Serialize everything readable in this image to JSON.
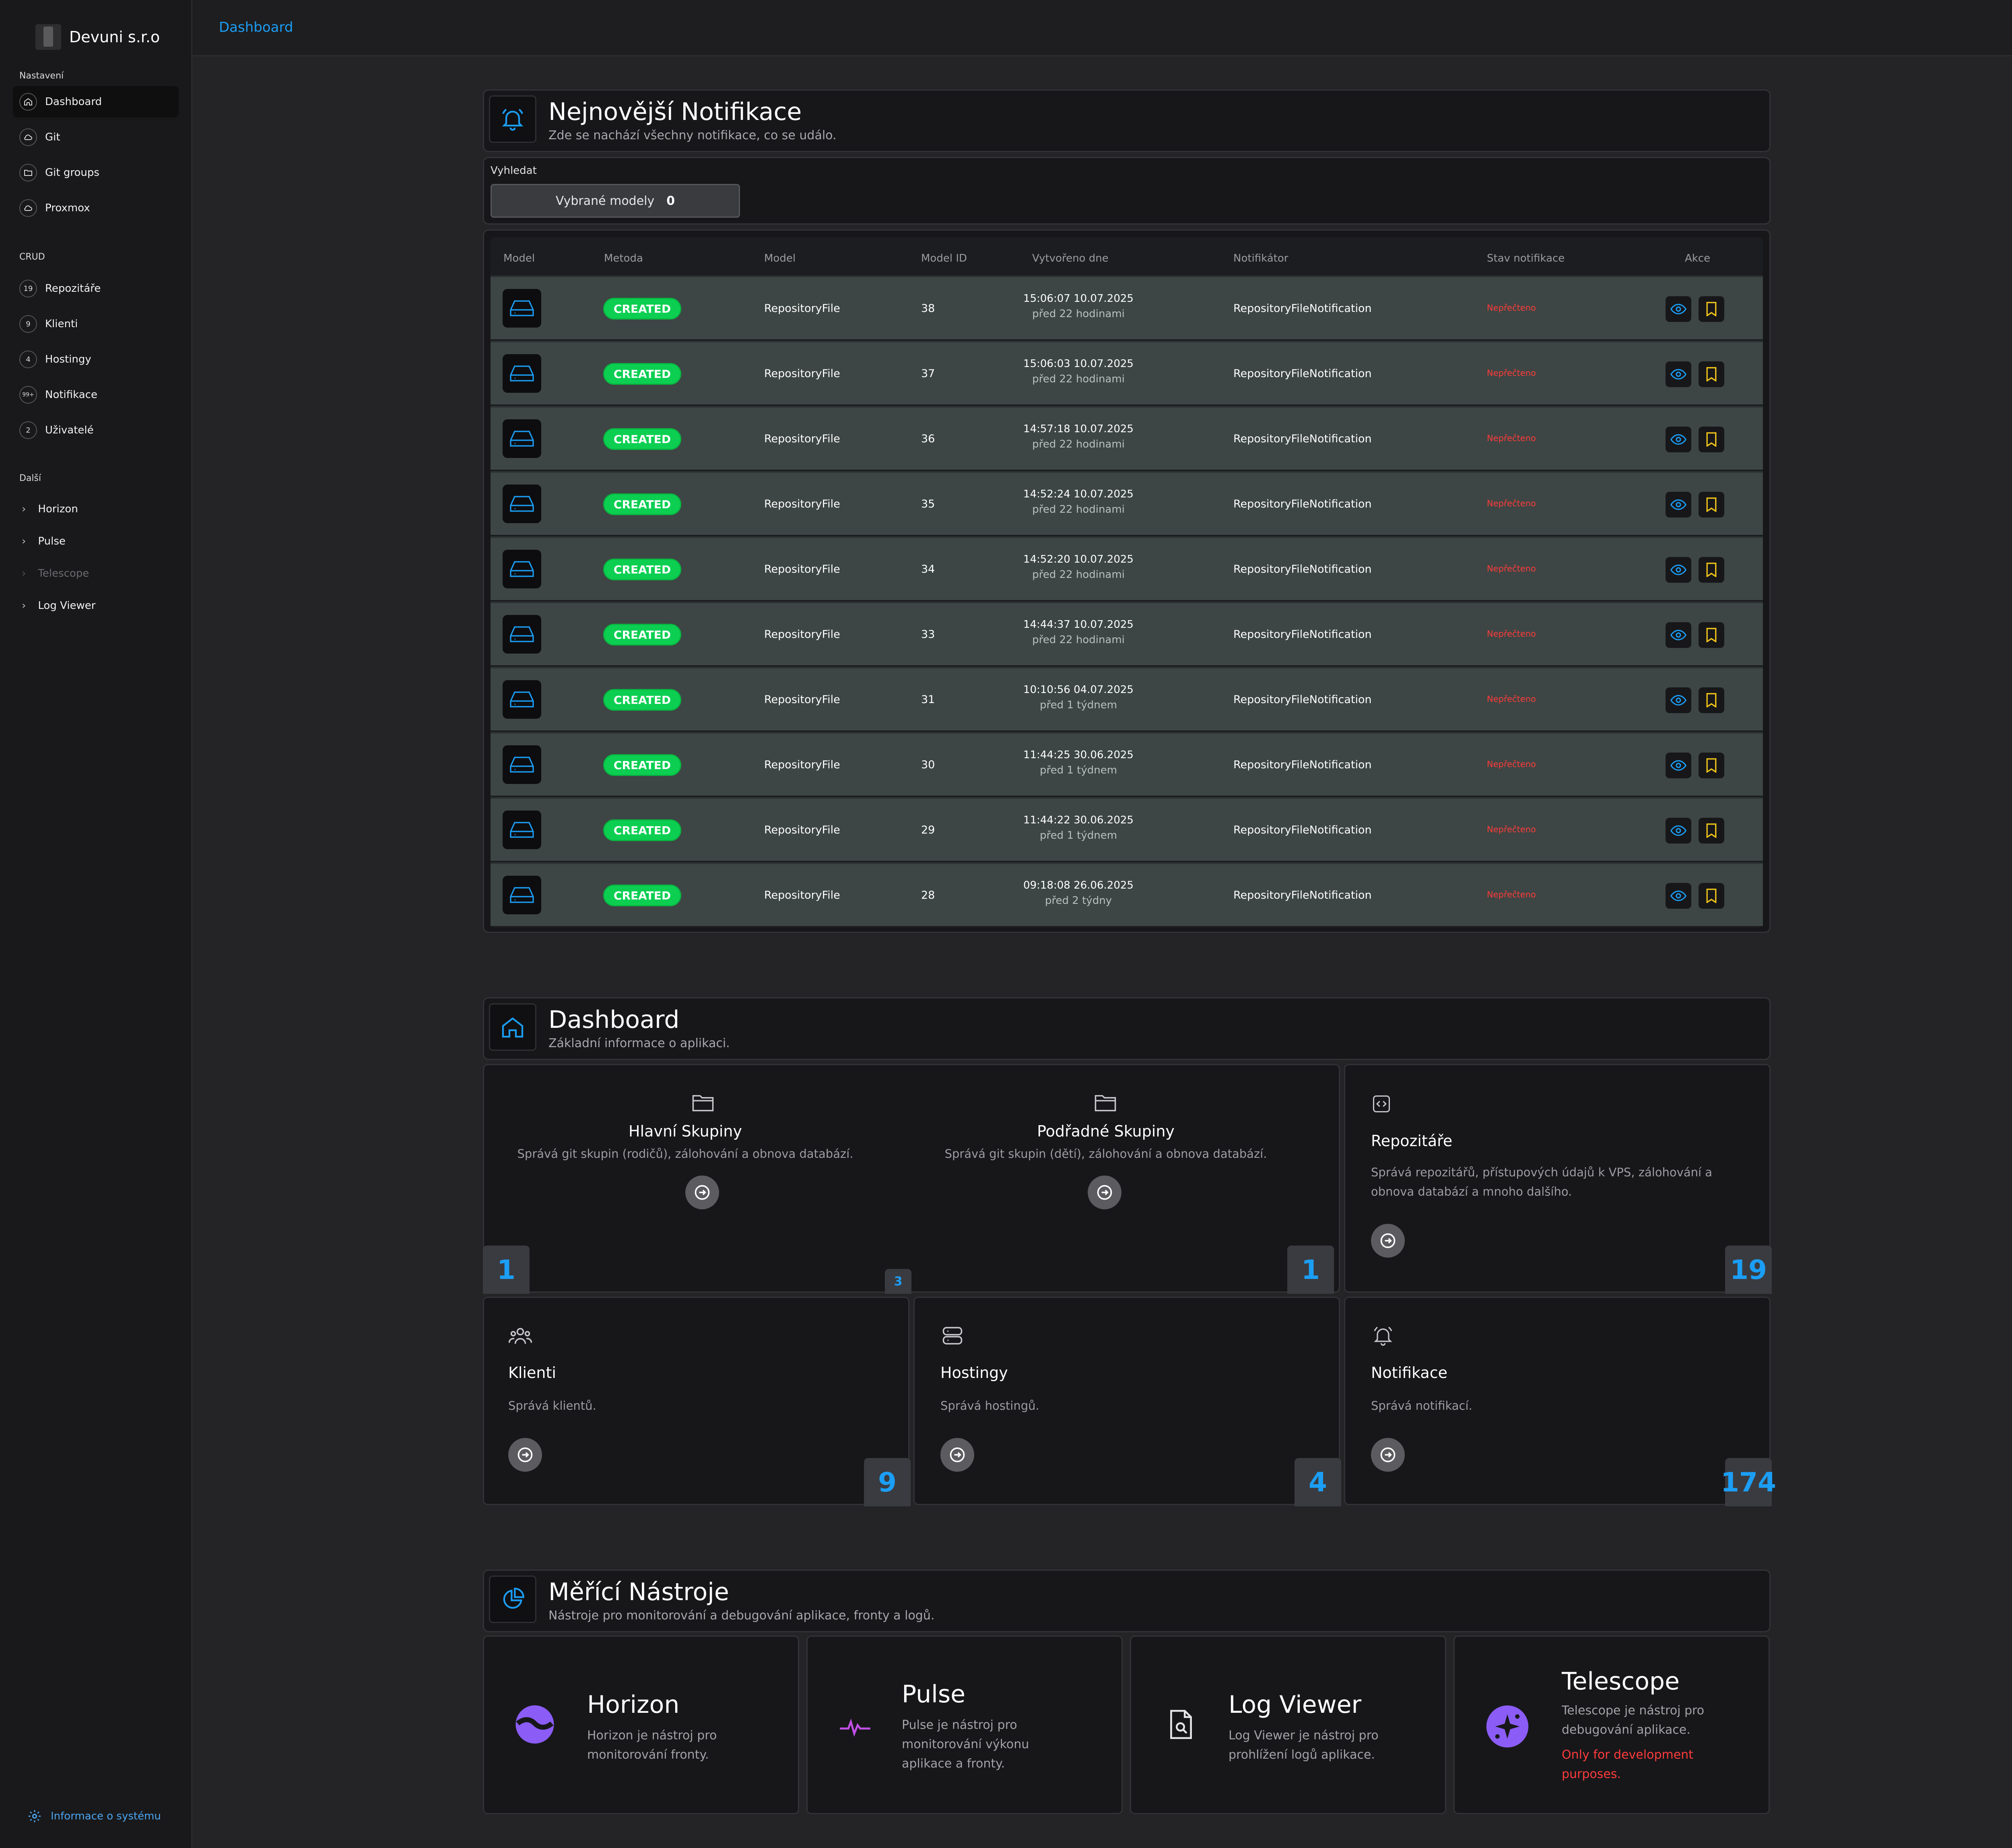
{
  "brand": {
    "name": "Devuni s.r.o"
  },
  "sidebar": {
    "sections": [
      {
        "label": "Nastavení",
        "items": [
          {
            "label": "Dashboard",
            "icon": "home-icon",
            "active": true
          },
          {
            "label": "Git",
            "icon": "cloud-icon"
          },
          {
            "label": "Git groups",
            "icon": "folder-icon"
          },
          {
            "label": "Proxmox",
            "icon": "cloud-icon"
          }
        ]
      },
      {
        "label": "CRUD",
        "items": [
          {
            "label": "Repozitáře",
            "count": "19"
          },
          {
            "label": "Klienti",
            "count": "9"
          },
          {
            "label": "Hostingy",
            "count": "4"
          },
          {
            "label": "Notifikace",
            "count": "99+"
          },
          {
            "label": "Uživatelé",
            "count": "2"
          }
        ]
      },
      {
        "label": "Další",
        "items": [
          {
            "label": "Horizon"
          },
          {
            "label": "Pulse"
          },
          {
            "label": "Telescope",
            "disabled": true
          },
          {
            "label": "Log Viewer"
          }
        ]
      }
    ],
    "footer": "Informace o systému"
  },
  "header": {
    "breadcrumb": "Dashboard"
  },
  "notifications": {
    "title": "Nejnovější Notifikace",
    "subtitle": "Zde se nachází všechny notifikace, co se událo.",
    "search_label": "Vyhledat",
    "selected_label": "Vybrané modely",
    "selected_count": "0",
    "columns": [
      "Model",
      "Metoda",
      "Model",
      "Model ID",
      "Vytvořeno dne",
      "Notifikátor",
      "Stav notifikace",
      "Akce"
    ],
    "rows": [
      {
        "method": "CREATED",
        "model": "RepositoryFile",
        "id": "38",
        "time": "15:06:07 10.07.2025",
        "ago": "před 22 hodinami",
        "notifier": "RepositoryFileNotification",
        "status": "Nepřečteno"
      },
      {
        "method": "CREATED",
        "model": "RepositoryFile",
        "id": "37",
        "time": "15:06:03 10.07.2025",
        "ago": "před 22 hodinami",
        "notifier": "RepositoryFileNotification",
        "status": "Nepřečteno"
      },
      {
        "method": "CREATED",
        "model": "RepositoryFile",
        "id": "36",
        "time": "14:57:18 10.07.2025",
        "ago": "před 22 hodinami",
        "notifier": "RepositoryFileNotification",
        "status": "Nepřečteno"
      },
      {
        "method": "CREATED",
        "model": "RepositoryFile",
        "id": "35",
        "time": "14:52:24 10.07.2025",
        "ago": "před 22 hodinami",
        "notifier": "RepositoryFileNotification",
        "status": "Nepřečteno"
      },
      {
        "method": "CREATED",
        "model": "RepositoryFile",
        "id": "34",
        "time": "14:52:20 10.07.2025",
        "ago": "před 22 hodinami",
        "notifier": "RepositoryFileNotification",
        "status": "Nepřečteno"
      },
      {
        "method": "CREATED",
        "model": "RepositoryFile",
        "id": "33",
        "time": "14:44:37 10.07.2025",
        "ago": "před 22 hodinami",
        "notifier": "RepositoryFileNotification",
        "status": "Nepřečteno"
      },
      {
        "method": "CREATED",
        "model": "RepositoryFile",
        "id": "31",
        "time": "10:10:56 04.07.2025",
        "ago": "před 1 týdnem",
        "notifier": "RepositoryFileNotification",
        "status": "Nepřečteno"
      },
      {
        "method": "CREATED",
        "model": "RepositoryFile",
        "id": "30",
        "time": "11:44:25 30.06.2025",
        "ago": "před 1 týdnem",
        "notifier": "RepositoryFileNotification",
        "status": "Nepřečteno"
      },
      {
        "method": "CREATED",
        "model": "RepositoryFile",
        "id": "29",
        "time": "11:44:22 30.06.2025",
        "ago": "před 1 týdnem",
        "notifier": "RepositoryFileNotification",
        "status": "Nepřečteno"
      },
      {
        "method": "CREATED",
        "model": "RepositoryFile",
        "id": "28",
        "time": "09:18:08 26.06.2025",
        "ago": "před 2 týdny",
        "notifier": "RepositoryFileNotification",
        "status": "Nepřečteno"
      }
    ]
  },
  "dashboard": {
    "title": "Dashboard",
    "subtitle": "Základní informace o aplikaci.",
    "group_card": {
      "count": "3",
      "main": {
        "title": "Hlavní Skupiny",
        "desc": "Správá git skupin (rodičů), zálohování a obnova databází.",
        "count": "1"
      },
      "sub": {
        "title": "Podřadné Skupiny",
        "desc": "Správá git skupin (dětí), zálohování a obnova databází.",
        "count": "1"
      }
    },
    "repos": {
      "title": "Repozitáře",
      "desc1": "Správá repozitářů, přístupových údajů k VPS, zálohování a",
      "desc2": "obnova databází a mnoho dalšího.",
      "count": "19"
    },
    "clients": {
      "title": "Klienti",
      "desc": "Správá klientů.",
      "count": "9"
    },
    "hostings": {
      "title": "Hostingy",
      "desc": "Správá hostingů.",
      "count": "4"
    },
    "notifications": {
      "title": "Notifikace",
      "desc": "Správá notifikací.",
      "count": "174"
    }
  },
  "tools": {
    "title": "Měřící Nástroje",
    "subtitle": "Nástroje pro monitorování a debugování aplikace, fronty a logů.",
    "horizon": {
      "title": "Horizon",
      "d1": "Horizon je nástroj pro",
      "d2": "monitorování fronty."
    },
    "pulse": {
      "title": "Pulse",
      "d1": "Pulse je nástroj pro",
      "d2": "monitorování výkonu",
      "d3": "aplikace a fronty."
    },
    "logviewer": {
      "title": "Log Viewer",
      "d1": "Log Viewer je nástroj pro",
      "d2": "prohlížení logů aplikace."
    },
    "telescope": {
      "title": "Telescope",
      "d1": "Telescope je nástroj pro",
      "d2": "debugování aplikace.",
      "w1": "Only for development",
      "w2": "purposes."
    }
  },
  "colors": {
    "accent": "#1b9ef5",
    "badge": "#0ccf52",
    "unread": "#ff3b3b",
    "bookmark": "#f0c419",
    "purple": "#8b5cf6"
  }
}
